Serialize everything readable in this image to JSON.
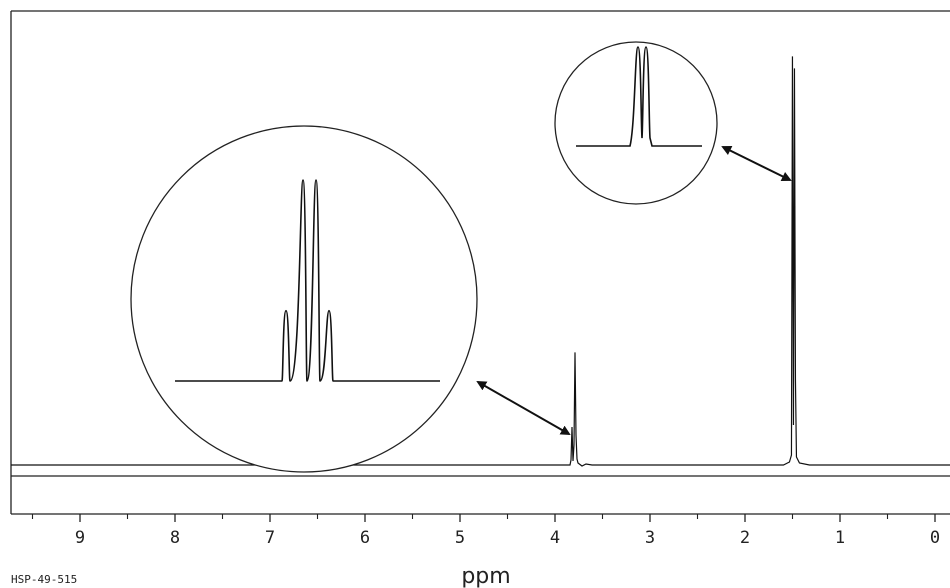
{
  "chart_data": {
    "type": "line",
    "title": "",
    "xlabel": "ppm",
    "ylabel": "",
    "xlim": [
      9.5,
      0
    ],
    "ylim": [
      0,
      1
    ],
    "x_ticks": [
      9,
      8,
      7,
      6,
      5,
      4,
      3,
      2,
      1,
      0
    ],
    "x_minor_step": 0.5,
    "x_reversed": true,
    "grid": false,
    "peaks": [
      {
        "ppm": 3.8,
        "height": 0.27,
        "multiplicity": "quartet",
        "inset": "left-circle"
      },
      {
        "ppm": 1.49,
        "height": 0.98,
        "multiplicity": "doublet",
        "inset": "right-circle"
      }
    ],
    "inset_left": {
      "multiplicity": "quartet",
      "relative_heights": [
        0.35,
        1.0,
        1.0,
        0.35
      ]
    },
    "inset_right": {
      "multiplicity": "doublet",
      "relative_heights": [
        1.0,
        1.0
      ]
    }
  },
  "sample_id": "HSP-49-515",
  "signature_text": "",
  "colors": {
    "line": "#111111",
    "frame": "#222222",
    "background": "#ffffff"
  }
}
